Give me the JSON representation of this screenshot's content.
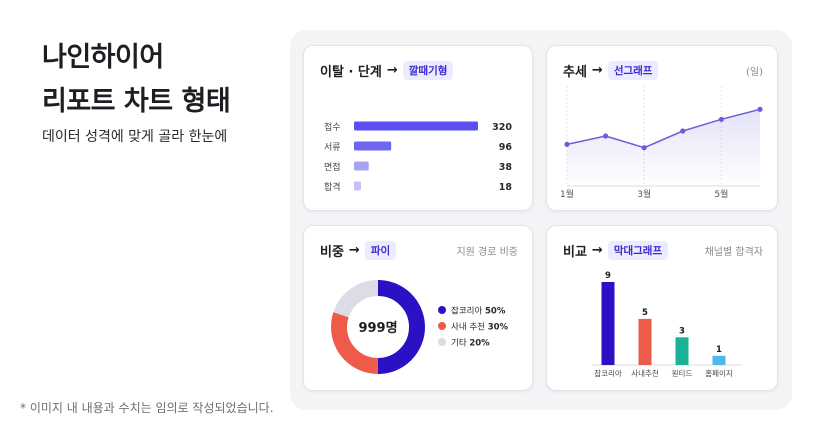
{
  "hero": {
    "title_line1": "나인하이어",
    "title_line2": "리포트 차트 형태",
    "subtitle": "데이터 성격에 맞게 골라 한눈에"
  },
  "footnote": "* 이미지 내 내용과 수치는 임의로 작성되었습니다.",
  "cards": {
    "funnel": {
      "title": "이탈 · 단계",
      "arrow": "→",
      "tag": "깔때기형"
    },
    "trend": {
      "title": "추세",
      "arrow": "→",
      "tag": "선그래프",
      "meta": "(일)"
    },
    "share": {
      "title": "비중",
      "arrow": "→",
      "tag": "파이",
      "meta": "지원 경로 비중"
    },
    "compare": {
      "title": "비교",
      "arrow": "→",
      "tag": "막대그래프",
      "meta": "채널별 합격자"
    }
  },
  "colors": {
    "accent": "#2a1ed0",
    "funnel": [
      "#5b4ff0",
      "#6f66ee",
      "#a6a3f4",
      "#c4c2f7"
    ],
    "pie": [
      "#2a12c4",
      "#ee5b4b",
      "#dcdce6"
    ],
    "bars": [
      "#2a12c4",
      "#ee5b4b",
      "#16b396",
      "#4fb8ef"
    ],
    "line": "#6a5ed9"
  },
  "chart_data": [
    {
      "type": "bar",
      "orientation": "horizontal",
      "categories": [
        "접수",
        "서류",
        "면접",
        "합격"
      ],
      "values": [
        320,
        96,
        38,
        18
      ],
      "xlim": [
        0,
        320
      ]
    },
    {
      "type": "line",
      "x_tick_labels": [
        "1월",
        "3월",
        "5월"
      ],
      "x": [
        1,
        2,
        3,
        4,
        5,
        6
      ],
      "y": [
        45,
        50,
        43,
        53,
        60,
        66
      ],
      "ylim": [
        20,
        80
      ],
      "grid": "vertical"
    },
    {
      "type": "pie",
      "variant": "donut",
      "center_label": "999명",
      "labels": [
        "잡코리아",
        "사내 추천",
        "기타"
      ],
      "values": [
        50,
        30,
        20
      ],
      "value_labels": [
        "50%",
        "30%",
        "20%"
      ],
      "legend": "right"
    },
    {
      "type": "bar",
      "categories": [
        "잡코리아",
        "사내추천",
        "원티드",
        "홈페이지"
      ],
      "values": [
        9,
        5,
        3,
        1
      ],
      "ylim": [
        0,
        9
      ]
    }
  ]
}
